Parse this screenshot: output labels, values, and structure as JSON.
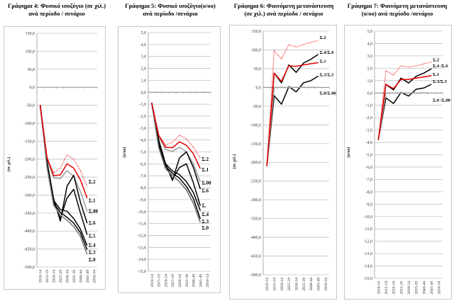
{
  "chart_data": [
    {
      "id": "g4",
      "type": "line",
      "title_line1": "Γράφημα 4: Φυσικό ισοζύγιο (σε χιλ.)",
      "title_line2": "ανά περίοδο / σενάριο",
      "ylabel": "(σε χιλ.)",
      "xlabel": "",
      "ylim": [
        -500,
        150
      ],
      "ystep": 50,
      "ytick_labels": [
        "150,0",
        "100,0",
        "50,0",
        "0,0",
        "-50,0",
        "-100,0",
        "-150,0",
        "-200,0",
        "-250,0",
        "-300,0",
        "-350,0",
        "-400,0",
        "-450,0",
        "-500,0"
      ],
      "categories": [
        "2010-14",
        "2015-19",
        "2020-24",
        "2025-29",
        "2030-34",
        "2035-39",
        "2040-44",
        "2045-49",
        "2050-54"
      ],
      "grid": true,
      "legend": "inline-right",
      "series": [
        {
          "name": "Σ.2",
          "label": "Σ.2",
          "color": "#ff0000",
          "style": "dotted",
          "values": [
            -50,
            -195,
            -238,
            -225,
            -188,
            -200,
            -232,
            -275,
            null
          ]
        },
        {
          "name": "Σ.1",
          "label": "Σ.1",
          "color": "#e60000",
          "style": "solid",
          "values": [
            -50,
            -195,
            -246,
            -244,
            -213,
            -225,
            -258,
            -308,
            null
          ]
        },
        {
          "name": "Σ.00",
          "label": "Σ.00",
          "color": "#a0a0a0",
          "style": "solid",
          "values": [
            -50,
            -198,
            -252,
            -254,
            -232,
            -248,
            -290,
            -345,
            null
          ]
        },
        {
          "name": "Σ.6",
          "label": "Σ.6",
          "color": "#000000",
          "style": "solid",
          "values": [
            -50,
            -205,
            -310,
            -372,
            -275,
            -245,
            -320,
            -378,
            null
          ]
        },
        {
          "name": "Σ.5",
          "label": "Σ.5",
          "color": "#000000",
          "style": "solid",
          "values": [
            -50,
            -210,
            -318,
            -365,
            -308,
            -284,
            -350,
            -410,
            null
          ]
        },
        {
          "name": "Σ.4",
          "label": "Σ.4",
          "color": "#000000",
          "style": "solid",
          "values": [
            -50,
            -215,
            -315,
            -340,
            -345,
            -365,
            -395,
            -440,
            null
          ]
        },
        {
          "name": "Σ.3",
          "label": "Σ.3",
          "color": "#000000",
          "style": "solid",
          "values": [
            -50,
            -218,
            -322,
            -348,
            -362,
            -378,
            -405,
            -452,
            null
          ]
        },
        {
          "name": "Σ.0",
          "label": "Σ.0",
          "color": "#7a7a7a",
          "style": "solid",
          "values": [
            -50,
            -222,
            -328,
            -355,
            -370,
            -388,
            -415,
            -465,
            null
          ]
        }
      ]
    },
    {
      "id": "g5",
      "type": "line",
      "title_line1": "Γράφημα 5: Φυσικό ισοζύγιο(ο/οο)",
      "title_line2": "ανά περίοδο /σενάριο",
      "ylabel": "(ο/οο)",
      "xlabel": "",
      "ylim": [
        -15,
        5
      ],
      "ystep": 1,
      "ytick_labels": [
        "5,0",
        "4,0",
        "3,0",
        "2,0",
        "1,0",
        "0,0",
        "-1,0",
        "-2,0",
        "-3,0",
        "-4,0",
        "-5,0",
        "-6,0",
        "-7,0",
        "-8,0",
        "-9,0",
        "-10,0",
        "-11,0",
        "-12,0",
        "-13,0",
        "-14,0",
        "-15,0"
      ],
      "categories": [
        "2010-14",
        "2015-19",
        "2020-24",
        "2025-29",
        "2030-34",
        "2035-39",
        "2040-44",
        "2045-49",
        "2050-54"
      ],
      "grid": true,
      "legend": "inline-right",
      "series": [
        {
          "name": "Σ.2",
          "label": "Σ.2",
          "color": "#ff0000",
          "style": "dotted",
          "values": [
            -0.9,
            -3.6,
            -4.4,
            -4.2,
            -3.6,
            -3.9,
            -4.6,
            -5.5,
            null
          ]
        },
        {
          "name": "Σ.1",
          "label": "Σ.1",
          "color": "#e60000",
          "style": "solid",
          "values": [
            -0.9,
            -3.6,
            -4.6,
            -4.65,
            -4.15,
            -4.45,
            -5.15,
            -6.4,
            null
          ]
        },
        {
          "name": "Σ.00",
          "label": "Σ.00",
          "color": "#a0a0a0",
          "style": "solid",
          "values": [
            -0.9,
            -3.7,
            -4.8,
            -4.95,
            -4.6,
            -5.0,
            -6.0,
            -7.5,
            null
          ]
        },
        {
          "name": "Σ.6",
          "label": "Σ.6",
          "color": "#000000",
          "style": "solid",
          "values": [
            -0.9,
            -4.0,
            -6.0,
            -7.4,
            -5.5,
            -5.0,
            -6.3,
            -8.1,
            null
          ]
        },
        {
          "name": "Σ.5",
          "label": "Σ.",
          "color": "#000000",
          "style": "solid",
          "values": [
            -0.9,
            -4.1,
            -6.1,
            -7.3,
            -6.3,
            -6.0,
            -7.6,
            -9.5,
            null
          ]
        },
        {
          "name": "Σ.4",
          "label": "Σ.4",
          "color": "#000000",
          "style": "solid",
          "values": [
            -0.9,
            -4.3,
            -6.0,
            -6.6,
            -6.9,
            -7.5,
            -8.4,
            -9.9,
            null
          ]
        },
        {
          "name": "Σ.3",
          "label": "Σ.3",
          "color": "#000000",
          "style": "solid",
          "values": [
            -0.9,
            -4.4,
            -6.2,
            -6.8,
            -7.2,
            -7.9,
            -8.9,
            -10.6,
            null
          ]
        },
        {
          "name": "Σ.0",
          "label": "Σ.0",
          "color": "#6a6a6a",
          "style": "solid",
          "values": [
            -0.9,
            -4.6,
            -6.4,
            -7.0,
            -7.5,
            -8.2,
            -9.3,
            -10.9,
            null
          ]
        }
      ]
    },
    {
      "id": "g6",
      "type": "line",
      "title_line1": "Γράφημα 6: Φαινόμενη μετανάστευση",
      "title_line2": "(σε χιλ.) ανά περίοδο / σενάριο",
      "ylabel": "(σε χιλ.)",
      "xlabel": "",
      "ylim": [
        -500,
        150
      ],
      "ystep": 50,
      "ytick_labels": [
        "150,0",
        "100,0",
        "50,0",
        "0,0",
        "-50,0",
        "-100,0",
        "-150,0",
        "-200,0",
        "-250,0",
        "-300,0",
        "-350,0",
        "-400,0",
        "-450,0",
        "-500,0"
      ],
      "categories": [
        "2010-14",
        "2015-19",
        "2020-24",
        "2025-29",
        "2030-34",
        "2035-39",
        "2040-44",
        "2045-49",
        "2050-54"
      ],
      "grid": true,
      "legend": "inline-right",
      "series": [
        {
          "name": "Σ.2",
          "label": "Σ.2",
          "color": "#ff0000",
          "style": "dotted",
          "values": [
            -210,
            98,
            76,
            114,
            108,
            114,
            120,
            125,
            null
          ]
        },
        {
          "name": "Σ.4/Σ.6",
          "label": "Σ.4/Σ.6",
          "color": "#000000",
          "style": "solid",
          "values": [
            -210,
            38,
            12,
            60,
            40,
            65,
            75,
            88,
            null
          ]
        },
        {
          "name": "Σ.1",
          "label": "Σ.1",
          "color": "#e60000",
          "style": "solid",
          "values": [
            -210,
            38,
            16,
            58,
            56,
            60,
            63,
            66,
            null
          ]
        },
        {
          "name": "Σ.3/Σ.5",
          "label": "Σ.3/Σ.5",
          "color": "#000000",
          "style": "solid",
          "values": [
            -210,
            -22,
            -45,
            2,
            -12,
            12,
            18,
            30,
            null
          ]
        },
        {
          "name": "Σ.0/Σ.00",
          "label": "Σ.0/Σ.00",
          "color": "#a0a0a0",
          "style": "solid",
          "values": [
            -210,
            0,
            0,
            0,
            0,
            0,
            0,
            0,
            null
          ]
        }
      ]
    },
    {
      "id": "g7",
      "type": "line",
      "title_line1": "Γράφημα 7: Φαινόμενη μετανάστευση",
      "title_line2": "(ο/οο) ανά περίοδο /σενάριο",
      "ylabel": "(ο/οο)",
      "xlabel": "",
      "ylim": [
        -15,
        5
      ],
      "ystep": 1,
      "ytick_labels": [
        "5,0",
        "4,0",
        "3,0",
        "2,0",
        "1,0",
        "0,0",
        "-1,0",
        "-2,0",
        "-3,0",
        "-4,0",
        "-5,0",
        "-6,0",
        "-7,0",
        "-8,0",
        "-9,0",
        "-10,0",
        "-11,0",
        "-12,0",
        "-13,0",
        "-14,0",
        "-15,0"
      ],
      "categories": [
        "2010-14",
        "2015-19",
        "2020-24",
        "2025-29",
        "2030-34",
        "2035-39",
        "2040-44",
        "2045-49",
        "2050-54"
      ],
      "grid": true,
      "legend": "inline-right",
      "series": [
        {
          "name": "Σ.2",
          "label": "Σ.2",
          "color": "#ff0000",
          "style": "dotted",
          "values": [
            -3.8,
            1.8,
            1.45,
            2.2,
            2.1,
            2.2,
            2.35,
            2.5,
            null
          ]
        },
        {
          "name": "Σ.4/Σ.6",
          "label": "Σ.4 /Σ.6",
          "color": "#000000",
          "style": "solid",
          "values": [
            -3.8,
            0.7,
            0.25,
            1.2,
            0.8,
            1.35,
            1.6,
            1.95,
            null
          ]
        },
        {
          "name": "Σ.1",
          "label": "Σ.1",
          "color": "#e60000",
          "style": "solid",
          "values": [
            -3.8,
            0.7,
            0.35,
            1.1,
            1.1,
            1.2,
            1.3,
            1.4,
            null
          ]
        },
        {
          "name": "Σ.3/Σ.5",
          "label": "Σ.3/Σ.5",
          "color": "#000000",
          "style": "solid",
          "values": [
            -3.8,
            -0.4,
            -0.85,
            0.05,
            -0.25,
            0.3,
            0.4,
            0.7,
            null
          ]
        },
        {
          "name": "Σ.0/Σ.00",
          "label": "Σ.0 /Σ.00",
          "color": "#a0a0a0",
          "style": "solid",
          "values": [
            -3.8,
            0,
            0,
            0,
            0,
            0,
            0,
            0,
            null
          ]
        }
      ]
    }
  ]
}
